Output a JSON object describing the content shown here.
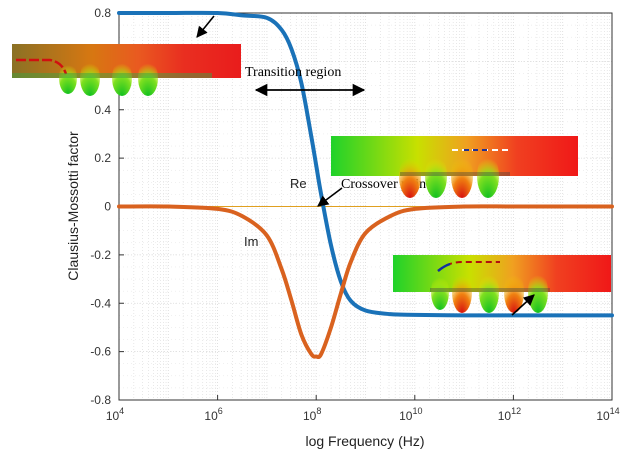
{
  "chart_data": {
    "type": "line",
    "xlabel": "log Frequency (Hz)",
    "ylabel": "Clausius-Mossotti factor",
    "x_scale": "log",
    "xlim_exponent": [
      4,
      14
    ],
    "ylim": [
      -0.8,
      0.8
    ],
    "grid": true,
    "x_ticks": [
      {
        "base": "10",
        "exp": "4"
      },
      {
        "base": "10",
        "exp": "6"
      },
      {
        "base": "10",
        "exp": "8"
      },
      {
        "base": "10",
        "exp": "10"
      },
      {
        "base": "10",
        "exp": "12"
      },
      {
        "base": "10",
        "exp": "14"
      }
    ],
    "y_ticks": [
      "0.8",
      "0.6",
      "0.4",
      "0.2",
      "0",
      "-0.2",
      "-0.4",
      "-0.6",
      "-0.8"
    ],
    "series": [
      {
        "name": "Re",
        "color": "#1a72b8",
        "log10_x": [
          4,
          5,
          6,
          6.5,
          7,
          7.3,
          7.5,
          7.7,
          7.9,
          8.0,
          8.1,
          8.3,
          8.5,
          8.7,
          9,
          9.5,
          10,
          11,
          12,
          13,
          14
        ],
        "values": [
          0.8,
          0.8,
          0.8,
          0.79,
          0.78,
          0.73,
          0.65,
          0.51,
          0.29,
          0.17,
          0.05,
          -0.16,
          -0.31,
          -0.39,
          -0.43,
          -0.445,
          -0.448,
          -0.45,
          -0.45,
          -0.45,
          -0.45
        ]
      },
      {
        "name": "Im",
        "color": "#d9621f",
        "log10_x": [
          4,
          5,
          6,
          6.5,
          7,
          7.3,
          7.5,
          7.7,
          7.9,
          8.0,
          8.1,
          8.3,
          8.5,
          8.7,
          9,
          9.5,
          10,
          11,
          12,
          13,
          14
        ],
        "values": [
          0,
          0,
          -0.01,
          -0.04,
          -0.12,
          -0.26,
          -0.39,
          -0.53,
          -0.61,
          -0.62,
          -0.61,
          -0.5,
          -0.36,
          -0.23,
          -0.11,
          -0.04,
          -0.01,
          0,
          0,
          0,
          0
        ]
      }
    ],
    "annotations": {
      "transition": "Transition region",
      "crossover": "Crossover point",
      "re_label": "Re",
      "im_label": "Im"
    }
  },
  "colors": {
    "grid": "#d9d9d9",
    "zero_line": "#e0a020",
    "axes": "#333333"
  }
}
